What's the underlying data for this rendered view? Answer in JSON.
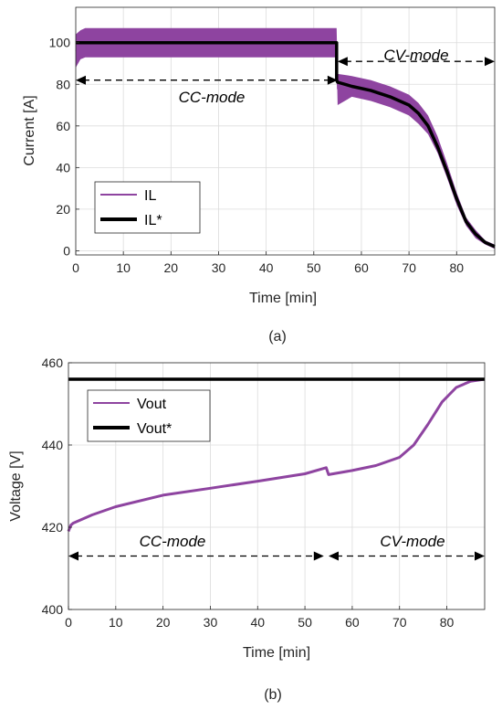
{
  "colors": {
    "il": "#8e44a0",
    "ref": "#000000",
    "grid": "#dcdcdc",
    "axis": "#262626"
  },
  "chart_data": [
    {
      "type": "line",
      "caption": "(a)",
      "xlabel": "Time [min]",
      "ylabel": "Current [A]",
      "xlim": [
        0,
        88
      ],
      "ylim": [
        -2,
        117
      ],
      "xticks": [
        "0",
        "10",
        "20",
        "30",
        "40",
        "50",
        "60",
        "70",
        "80"
      ],
      "yticks": [
        "0",
        "20",
        "40",
        "60",
        "80",
        "100"
      ],
      "grid": true,
      "legend": {
        "position": "bottom-left",
        "entries": [
          "IL",
          "IL*"
        ]
      },
      "annotations": [
        {
          "text": "CC-mode",
          "from_x": 0,
          "to_x": 55,
          "y": 82
        },
        {
          "text": "CV-mode",
          "from_x": 55,
          "to_x": 88,
          "y": 91
        }
      ],
      "series": [
        {
          "name": "IL",
          "x": [
            0,
            1,
            2,
            5,
            10,
            20,
            30,
            40,
            50,
            54.8,
            55,
            58,
            62,
            66,
            70,
            72,
            74,
            76,
            78,
            80,
            82,
            84,
            86,
            88
          ],
          "y": [
            96,
            99,
            100,
            100,
            100,
            100,
            100,
            100,
            100,
            100,
            78,
            79,
            77,
            74,
            70,
            66,
            60,
            50,
            38,
            25,
            14,
            8,
            4,
            2
          ],
          "y_low": [
            88,
            92,
            93,
            93,
            93,
            93,
            93,
            93,
            93,
            93,
            70,
            74,
            72,
            69,
            65,
            61,
            56,
            47,
            35,
            22,
            12,
            6,
            3,
            1
          ],
          "y_high": [
            104,
            106,
            107,
            107,
            107,
            107,
            107,
            107,
            107,
            107,
            85,
            84,
            82,
            79,
            75,
            71,
            65,
            55,
            42,
            28,
            16,
            10,
            5,
            3
          ]
        },
        {
          "name": "IL*",
          "x": [
            0,
            54.8,
            54.8,
            55,
            58,
            62,
            66,
            70,
            72,
            74,
            76,
            78,
            80,
            82,
            84,
            86,
            88
          ],
          "y": [
            100,
            100,
            82,
            81,
            79,
            77,
            74,
            70,
            66,
            60,
            50,
            38,
            25,
            14,
            8,
            4,
            2
          ]
        }
      ]
    },
    {
      "type": "line",
      "caption": "(b)",
      "xlabel": "Time [min]",
      "ylabel": "Voltage [V]",
      "xlim": [
        0,
        88
      ],
      "ylim": [
        400,
        460
      ],
      "xticks": [
        "0",
        "10",
        "20",
        "30",
        "40",
        "50",
        "60",
        "70",
        "80"
      ],
      "yticks": [
        "400",
        "420",
        "440",
        "460"
      ],
      "grid": true,
      "legend": {
        "position": "top-left",
        "entries": [
          "Vout",
          "Vout*"
        ]
      },
      "annotations": [
        {
          "text": "CC-mode",
          "from_x": 0,
          "to_x": 54,
          "y": 413
        },
        {
          "text": "CV-mode",
          "from_x": 55,
          "to_x": 88,
          "y": 413
        }
      ],
      "series": [
        {
          "name": "Vout",
          "x": [
            0,
            0.5,
            1,
            5,
            10,
            20,
            30,
            40,
            50,
            54.5,
            55,
            60,
            65,
            70,
            73,
            76,
            79,
            82,
            85,
            88
          ],
          "y": [
            419,
            420.5,
            421,
            423,
            425,
            427.8,
            429.5,
            431.2,
            433,
            434.5,
            432.8,
            433.8,
            435,
            437,
            440,
            445,
            450.5,
            454,
            455.5,
            456
          ]
        },
        {
          "name": "Vout*",
          "x": [
            0,
            88
          ],
          "y": [
            456,
            456
          ]
        }
      ]
    }
  ]
}
